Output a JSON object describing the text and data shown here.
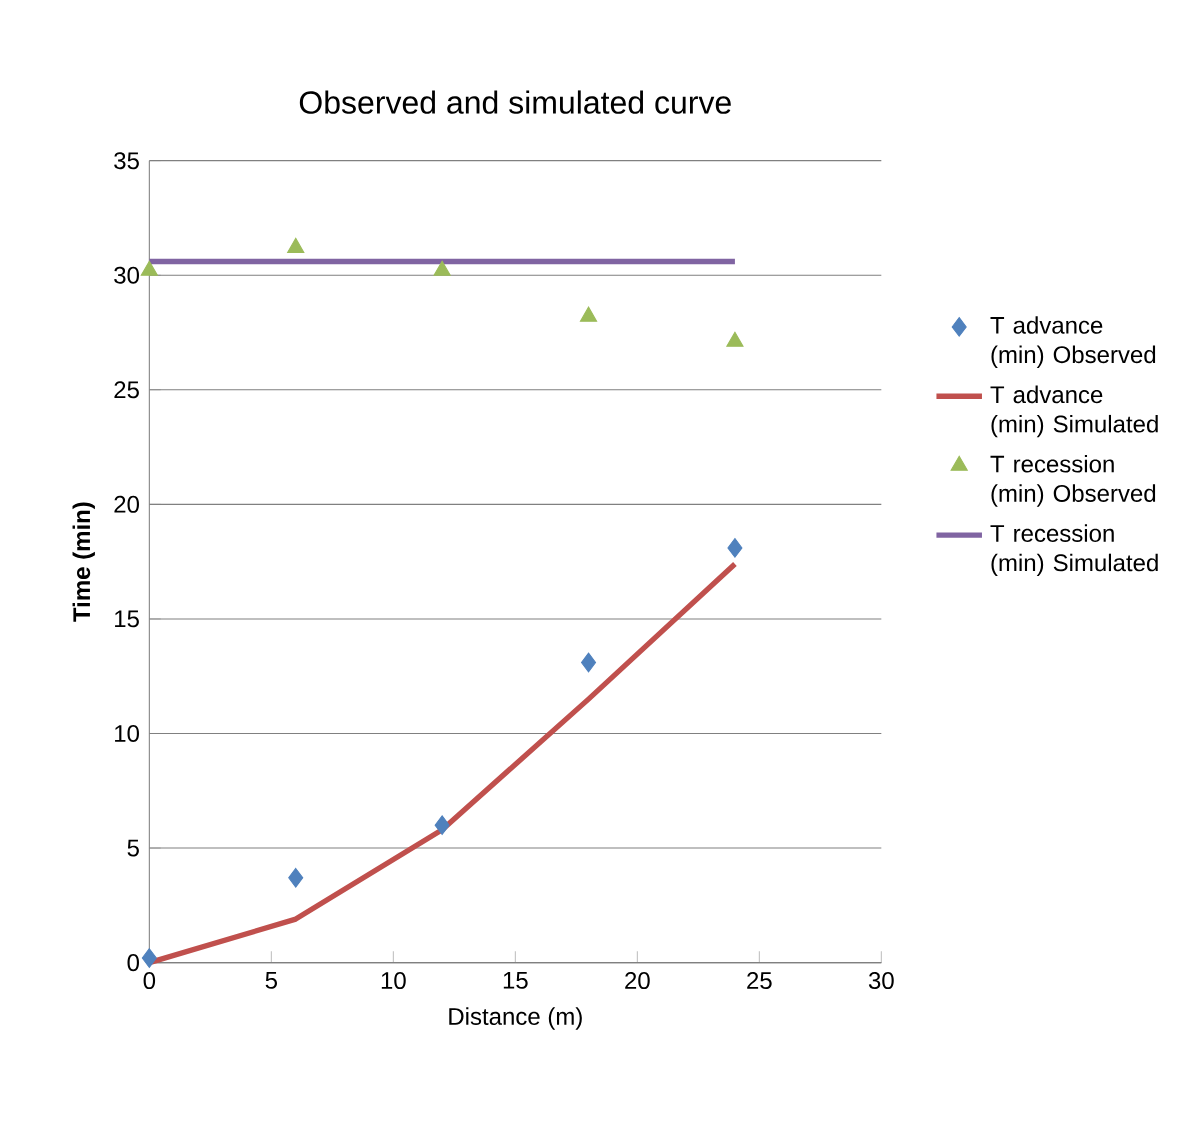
{
  "chart_data": {
    "type": "line",
    "title": "Observed and simulated curve",
    "xlabel": "Distance (m)",
    "ylabel": "Time (min)",
    "xlim": [
      0,
      30
    ],
    "ylim": [
      0,
      35
    ],
    "xticks": [
      0,
      5,
      10,
      15,
      20,
      25,
      30
    ],
    "yticks": [
      0,
      5,
      10,
      15,
      20,
      25,
      30,
      35
    ],
    "grid": "y",
    "legend": "right",
    "x": [
      0,
      6,
      12,
      18,
      24
    ],
    "series": [
      {
        "name": "T advance (min) Observed",
        "type": "scatter",
        "marker": "diamond",
        "color": "#4f81bd",
        "values": [
          0.2,
          3.7,
          6.0,
          13.1,
          18.1
        ]
      },
      {
        "name": "T advance (min) Simulated",
        "color": "#c0504d",
        "values": [
          0,
          1.9,
          5.8,
          11.5,
          17.4
        ]
      },
      {
        "name": "T recession (min) Observed",
        "type": "scatter",
        "marker": "triangle",
        "color": "#9bbb59",
        "values": [
          30.2,
          31.2,
          30.2,
          28.2,
          27.1
        ]
      },
      {
        "name": "T recession (min) Simulated",
        "color": "#8064a2",
        "values": [
          30.6,
          30.6,
          30.6,
          30.6,
          30.6
        ]
      }
    ]
  }
}
